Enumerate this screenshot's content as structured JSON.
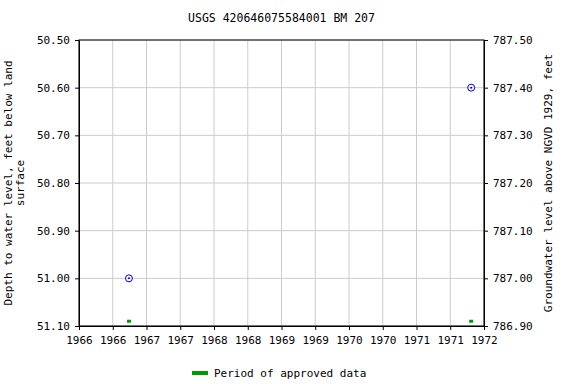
{
  "chart_data": {
    "type": "scatter",
    "title": "USGS 420646075584001 BM 207",
    "ylabel": "Depth to water level, feet below land\nsurface",
    "y2label": "Groundwater level above NGVD 1929, feet",
    "x": [
      1966.74,
      1971.81
    ],
    "series": [
      {
        "values": [
          51.0,
          50.6
        ],
        "color": "#0000cc",
        "marker": "circle"
      },
      {
        "name": "Period of approved data",
        "values": [
          51.09,
          51.09
        ],
        "color": "#009900",
        "marker": "square"
      }
    ],
    "xlim": [
      1966,
      1972
    ],
    "xticks": [
      1966,
      {
        "value": 1966.5,
        "label": "1966"
      },
      1967,
      {
        "value": 1967.5,
        "label": "1967"
      },
      1968,
      {
        "value": 1968.5,
        "label": "1968"
      },
      1969,
      {
        "value": 1969.5,
        "label": "1969"
      },
      1970,
      {
        "value": 1970.5,
        "label": "1970"
      },
      1971,
      {
        "value": 1971.5,
        "label": "1971"
      },
      1972
    ],
    "ylim": [
      51.1,
      50.5
    ],
    "yticks": [
      {
        "value": 50.5,
        "label": "50.50"
      },
      {
        "value": 50.6,
        "label": "50.60"
      },
      {
        "value": 50.7,
        "label": "50.70"
      },
      {
        "value": 50.8,
        "label": "50.80"
      },
      {
        "value": 50.9,
        "label": "50.90"
      },
      {
        "value": 51.0,
        "label": "51.00"
      },
      {
        "value": 51.1,
        "label": "51.10"
      }
    ],
    "y2lim": [
      786.9,
      787.5
    ],
    "y2ticks": [
      {
        "value": 786.9,
        "label": "786.90"
      },
      {
        "value": 787.0,
        "label": "787.00"
      },
      {
        "value": 787.1,
        "label": "787.10"
      },
      {
        "value": 787.2,
        "label": "787.20"
      },
      {
        "value": 787.3,
        "label": "787.30"
      },
      {
        "value": 787.4,
        "label": "787.40"
      },
      {
        "value": 787.5,
        "label": "787.50"
      }
    ],
    "grid": true,
    "legend": "bottom"
  }
}
